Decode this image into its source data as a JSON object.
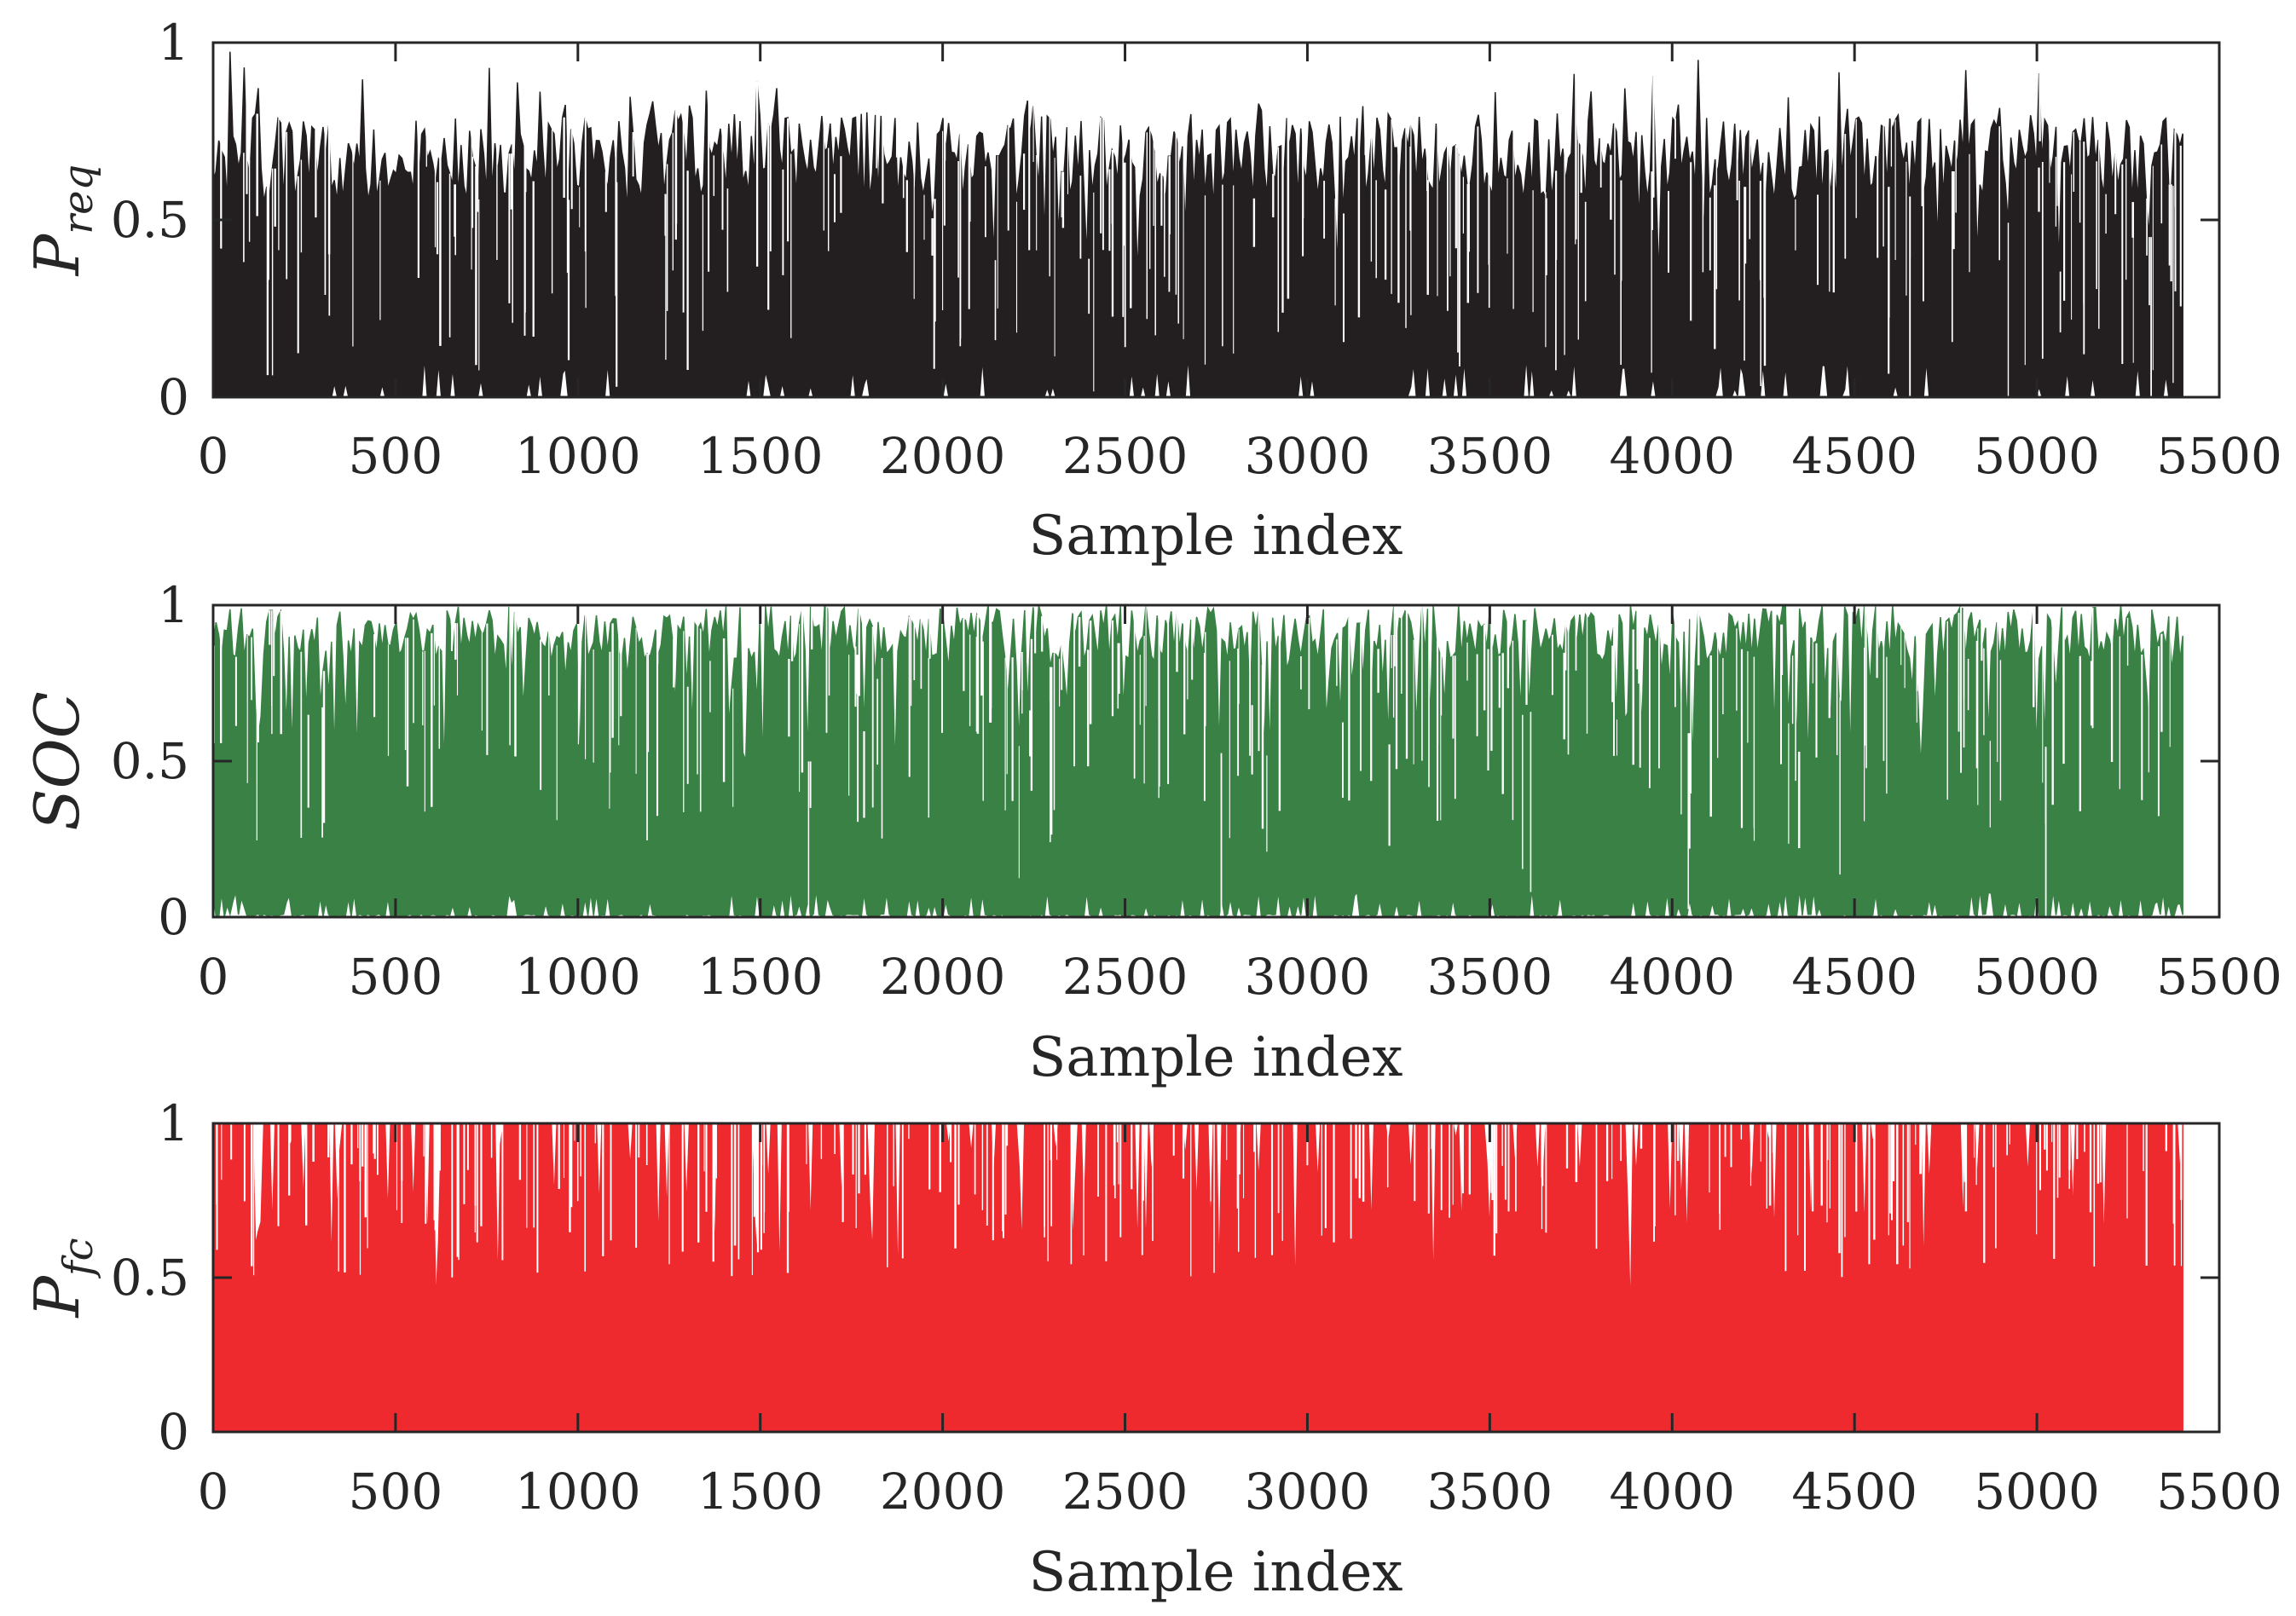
{
  "chart_data": [
    {
      "type": "area",
      "ylabel": {
        "main": "P",
        "sub": "req"
      },
      "xlabel": "Sample index",
      "xlim": [
        0,
        5500
      ],
      "ylim": [
        0,
        1
      ],
      "xticks": [
        "0",
        "500",
        "1000",
        "1500",
        "2000",
        "2500",
        "3000",
        "3500",
        "4000",
        "4500",
        "5000",
        "5500"
      ],
      "yticks": [
        "0",
        "0.5",
        "1"
      ],
      "color": "#231f20",
      "series": [
        {
          "n_samples": 5400,
          "value_range": [
            0,
            1
          ],
          "typical_peak": 0.75
        }
      ]
    },
    {
      "type": "area",
      "ylabel": {
        "main": "SOC",
        "sub": ""
      },
      "xlabel": "Sample index",
      "xlim": [
        0,
        5500
      ],
      "ylim": [
        0,
        1
      ],
      "xticks": [
        "0",
        "500",
        "1000",
        "1500",
        "2000",
        "2500",
        "3000",
        "3500",
        "4000",
        "4500",
        "5000",
        "5500"
      ],
      "yticks": [
        "0",
        "0.5",
        "1"
      ],
      "color": "#3a8146",
      "series": [
        {
          "n_samples": 5400,
          "value_range": [
            0,
            1
          ],
          "typical_peak": 0.9
        }
      ]
    },
    {
      "type": "area",
      "ylabel": {
        "main": "P",
        "sub": "fc"
      },
      "xlabel": "Sample index",
      "xlim": [
        0,
        5500
      ],
      "ylim": [
        0,
        1
      ],
      "xticks": [
        "0",
        "500",
        "1000",
        "1500",
        "2000",
        "2500",
        "3000",
        "3500",
        "4000",
        "4500",
        "5000",
        "5500"
      ],
      "yticks": [
        "0",
        "0.5",
        "1"
      ],
      "color": "#ee2a2f",
      "series": [
        {
          "n_samples": 5400,
          "value_range": [
            0,
            1
          ],
          "typical_peak": 1.0
        }
      ]
    }
  ]
}
